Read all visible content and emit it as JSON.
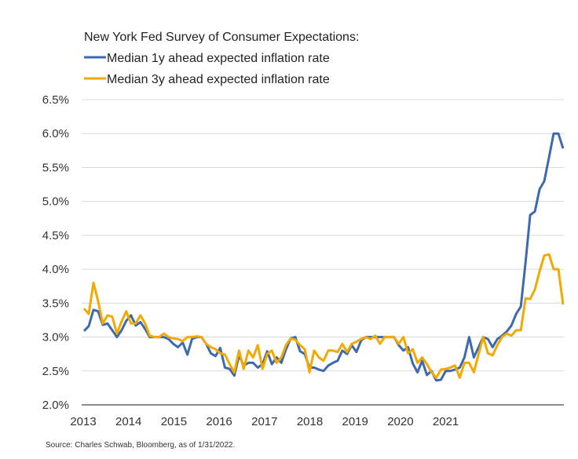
{
  "chart_data": {
    "type": "line",
    "title": "New York Fed Survey of Consumer Expectations:",
    "xlabel": "",
    "ylabel": "",
    "ylim": [
      2.0,
      6.5
    ],
    "y_ticks": [
      "6.5%",
      "6.0%",
      "5.5%",
      "5.0%",
      "4.5%",
      "4.0%",
      "3.5%",
      "3.0%",
      "2.5%",
      "2.0%"
    ],
    "y_tick_values": [
      6.5,
      6.0,
      5.5,
      5.0,
      4.5,
      4.0,
      3.5,
      3.0,
      2.5,
      2.0
    ],
    "x_ticks": [
      "2013",
      "2014",
      "2015",
      "2016",
      "2017",
      "2018",
      "2019",
      "2020",
      "2021"
    ],
    "grid": true,
    "legend_position": "top-left",
    "source": "Source: Charles Schwab, Bloomberg, as of 1/31/2022.",
    "series": [
      {
        "name": "Median 1y ahead expected inflation rate",
        "color": "#3d6aaf",
        "values": [
          3.09,
          3.16,
          3.4,
          3.38,
          3.18,
          3.2,
          3.1,
          3.0,
          3.1,
          3.24,
          3.32,
          3.17,
          3.22,
          3.12,
          3.0,
          3.0,
          3.0,
          3.0,
          2.97,
          2.9,
          2.85,
          2.92,
          2.74,
          2.97,
          3.0,
          3.0,
          2.9,
          2.76,
          2.72,
          2.84,
          2.55,
          2.53,
          2.43,
          2.73,
          2.58,
          2.62,
          2.62,
          2.55,
          2.6,
          2.79,
          2.6,
          2.7,
          2.62,
          2.82,
          2.98,
          3.0,
          2.79,
          2.75,
          2.55,
          2.55,
          2.52,
          2.5,
          2.58,
          2.62,
          2.65,
          2.8,
          2.75,
          2.88,
          2.78,
          2.95,
          3.0,
          3.0,
          3.0,
          3.0,
          3.0,
          3.0,
          3.0,
          2.88,
          2.8,
          2.85,
          2.61,
          2.48,
          2.65,
          2.44,
          2.5,
          2.36,
          2.37,
          2.5,
          2.5,
          2.52,
          2.55,
          2.7,
          3.0,
          2.7,
          2.85,
          3.0,
          2.97,
          2.85,
          2.97,
          3.02,
          3.08,
          3.17,
          3.34,
          3.45,
          4.1,
          4.8,
          4.85,
          5.18,
          5.3,
          5.65,
          6.0,
          6.0,
          5.78
        ]
      },
      {
        "name": "Median 3y ahead expected inflation rate",
        "color": "#f2a900",
        "values": [
          3.42,
          3.34,
          3.8,
          3.53,
          3.2,
          3.32,
          3.3,
          3.05,
          3.23,
          3.38,
          3.2,
          3.2,
          3.32,
          3.2,
          3.02,
          3.0,
          3.0,
          3.05,
          3.0,
          2.98,
          2.97,
          2.94,
          3.0,
          3.0,
          3.01,
          3.0,
          2.9,
          2.85,
          2.82,
          2.76,
          2.74,
          2.6,
          2.48,
          2.8,
          2.53,
          2.8,
          2.7,
          2.88,
          2.53,
          2.75,
          2.8,
          2.62,
          2.7,
          2.88,
          2.98,
          2.96,
          2.88,
          2.82,
          2.48,
          2.8,
          2.7,
          2.65,
          2.8,
          2.8,
          2.78,
          2.9,
          2.78,
          2.9,
          2.93,
          2.97,
          3.0,
          2.97,
          3.02,
          2.9,
          3.0,
          3.0,
          3.0,
          2.9,
          3.0,
          2.76,
          2.82,
          2.62,
          2.7,
          2.6,
          2.48,
          2.4,
          2.52,
          2.53,
          2.55,
          2.58,
          2.4,
          2.62,
          2.62,
          2.48,
          2.75,
          3.0,
          2.76,
          2.73,
          2.88,
          3.0,
          3.05,
          3.02,
          3.1,
          3.1,
          3.57,
          3.56,
          3.7,
          3.97,
          4.2,
          4.22,
          4.0,
          4.0,
          3.48
        ]
      }
    ]
  }
}
